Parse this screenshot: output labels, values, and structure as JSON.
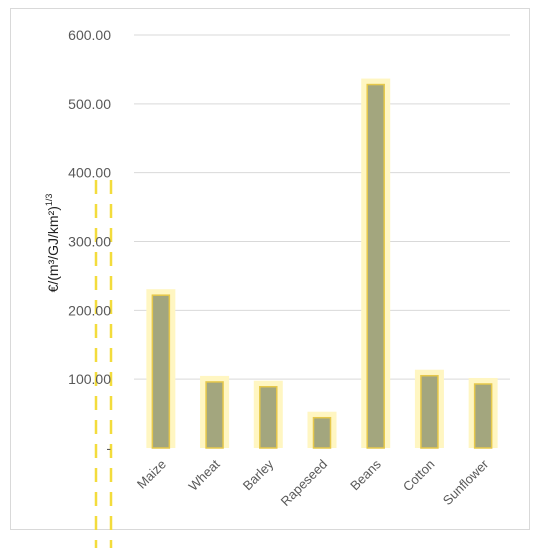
{
  "chart_data": {
    "type": "bar",
    "categories": [
      "Maize",
      "Wheat",
      "Barley",
      "Rapeseed",
      "Beans",
      "Cotton",
      "Sunflower"
    ],
    "values": [
      222,
      96,
      89,
      44,
      528,
      105,
      93
    ],
    "ylabel": {
      "main": "€/(m³/GJ/km²)",
      "exponent": "1/3"
    },
    "ylim": [
      0,
      600
    ],
    "yticks": [
      {
        "value": 0,
        "label": "-"
      },
      {
        "value": 100,
        "label": "100.00"
      },
      {
        "value": 200,
        "label": "200.00"
      },
      {
        "value": 300,
        "label": "300.00"
      },
      {
        "value": 400,
        "label": "400.00"
      },
      {
        "value": 500,
        "label": "500.00"
      },
      {
        "value": 600,
        "label": "600.00"
      }
    ],
    "grid": true,
    "colors": {
      "bar_fill": "#a3a67e",
      "bar_border": "#e6c84a",
      "bar_glow": "#fff6c2",
      "grid": "#d9d9d9",
      "dashes": "#f3dc3c"
    }
  }
}
